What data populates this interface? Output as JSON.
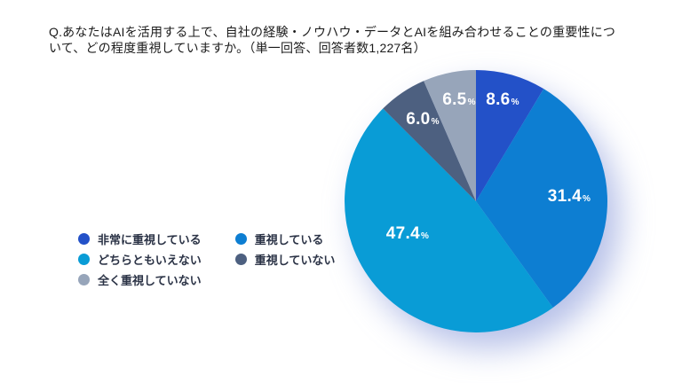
{
  "title": {
    "line1": "Q.あなたはAIを活用する上で、自社の経験・ノウハウ・データとAIを組み合わせることの重要性につ",
    "line2": "いて、どの程度重視していますか。（単一回答、回答者数1,227名）"
  },
  "survey": {
    "answer_type": "単一回答",
    "respondent_count": "1,227名"
  },
  "chart_data": {
    "type": "pie",
    "title": "AIと自社の経験・ノウハウ・データを組み合わせることの重要性の重視度",
    "direction": "clockwise",
    "start_angle_deg": 0,
    "value_suffix": "%",
    "series": [
      {
        "label": "非常に重視している",
        "value": 8.6,
        "color": "#2351c8"
      },
      {
        "label": "重視している",
        "value": 31.4,
        "color": "#0d7ed2"
      },
      {
        "label": "どちらともいえない",
        "value": 47.4,
        "color": "#099cd6"
      },
      {
        "label": "重視していない",
        "value": 6.0,
        "color": "#4d6080"
      },
      {
        "label": "全く重視していない",
        "value": 6.5,
        "color": "#97a5ba"
      }
    ],
    "legend_position": "left-bottom"
  }
}
